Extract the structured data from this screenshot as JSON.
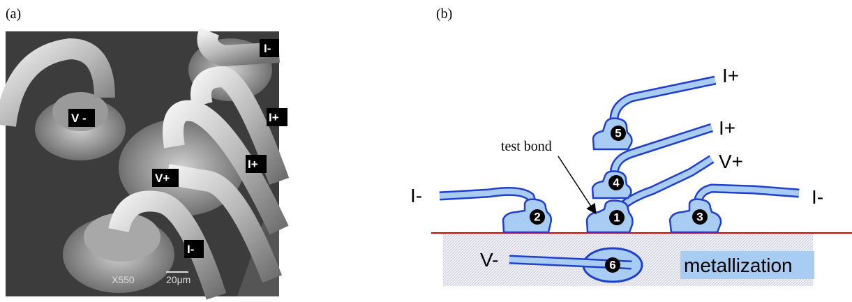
{
  "panel_a": {
    "label": "(a)",
    "photo_labels": [
      "I-",
      "V -",
      "I+",
      "I+",
      "V+",
      "I-"
    ],
    "magnification": "X550",
    "scale_bar": "20μm"
  },
  "panel_b": {
    "label": "(b)",
    "wire_labels": [
      "I+",
      "I+",
      "V+",
      "I-",
      "I-",
      "V-"
    ],
    "test_bond": "test bond",
    "metallization": "metallization",
    "bond_numbers": [
      "1",
      "2",
      "3",
      "4",
      "5",
      "6"
    ]
  }
}
